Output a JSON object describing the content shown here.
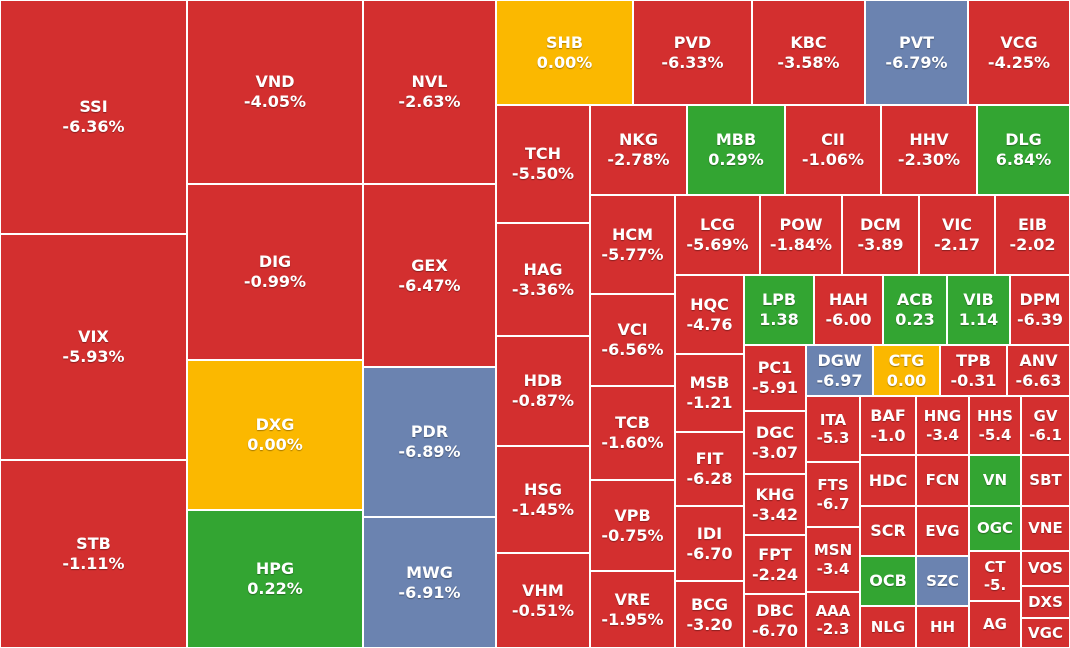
{
  "colors": {
    "down": "#d32f2f",
    "up": "#33a532",
    "unchanged": "#fbb800",
    "floor": "#6b83b0",
    "ceiling": "#6b83b0"
  },
  "chart_data": {
    "type": "treemap",
    "tiles": [
      {
        "symbol": "SSI",
        "change": "-6.36%",
        "status": "down"
      },
      {
        "symbol": "VIX",
        "change": "-5.93%",
        "status": "down"
      },
      {
        "symbol": "STB",
        "change": "-1.11%",
        "status": "down"
      },
      {
        "symbol": "VND",
        "change": "-4.05%",
        "status": "down"
      },
      {
        "symbol": "DIG",
        "change": "-0.99%",
        "status": "down"
      },
      {
        "symbol": "DXG",
        "change": "0.00%",
        "status": "unchanged"
      },
      {
        "symbol": "HPG",
        "change": "0.22%",
        "status": "up"
      },
      {
        "symbol": "NVL",
        "change": "-2.63%",
        "status": "down"
      },
      {
        "symbol": "GEX",
        "change": "-6.47%",
        "status": "down"
      },
      {
        "symbol": "PDR",
        "change": "-6.89%",
        "status": "floor"
      },
      {
        "symbol": "MWG",
        "change": "-6.91%",
        "status": "floor"
      },
      {
        "symbol": "SHB",
        "change": "0.00%",
        "status": "unchanged"
      },
      {
        "symbol": "PVD",
        "change": "-6.33%",
        "status": "down"
      },
      {
        "symbol": "KBC",
        "change": "-3.58%",
        "status": "down"
      },
      {
        "symbol": "PVT",
        "change": "-6.79%",
        "status": "floor"
      },
      {
        "symbol": "VCG",
        "change": "-4.25%",
        "status": "down"
      },
      {
        "symbol": "TCH",
        "change": "-5.50%",
        "status": "down"
      },
      {
        "symbol": "HAG",
        "change": "-3.36%",
        "status": "down"
      },
      {
        "symbol": "HDB",
        "change": "-0.87%",
        "status": "down"
      },
      {
        "symbol": "HSG",
        "change": "-1.45%",
        "status": "down"
      },
      {
        "symbol": "VHM",
        "change": "-0.51%",
        "status": "down"
      },
      {
        "symbol": "NKG",
        "change": "-2.78%",
        "status": "down"
      },
      {
        "symbol": "MBB",
        "change": "0.29%",
        "status": "up"
      },
      {
        "symbol": "CII",
        "change": "-1.06%",
        "status": "down"
      },
      {
        "symbol": "HHV",
        "change": "-2.30%",
        "status": "down"
      },
      {
        "symbol": "DLG",
        "change": "6.84%",
        "status": "up"
      },
      {
        "symbol": "HCM",
        "change": "-5.77%",
        "status": "down"
      },
      {
        "symbol": "VCI",
        "change": "-6.56%",
        "status": "down"
      },
      {
        "symbol": "TCB",
        "change": "-1.60%",
        "status": "down"
      },
      {
        "symbol": "VPB",
        "change": "-0.75%",
        "status": "down"
      },
      {
        "symbol": "VRE",
        "change": "-1.95%",
        "status": "down"
      },
      {
        "symbol": "LCG",
        "change": "-5.69%",
        "status": "down"
      },
      {
        "symbol": "POW",
        "change": "-1.84%",
        "status": "down"
      },
      {
        "symbol": "DCM",
        "change": "-3.89",
        "status": "down"
      },
      {
        "symbol": "VIC",
        "change": "-2.17",
        "status": "down"
      },
      {
        "symbol": "EIB",
        "change": "-2.02",
        "status": "down"
      },
      {
        "symbol": "HQC",
        "change": "-4.76",
        "status": "down"
      },
      {
        "symbol": "MSB",
        "change": "-1.21",
        "status": "down"
      },
      {
        "symbol": "FIT",
        "change": "-6.28",
        "status": "down"
      },
      {
        "symbol": "IDI",
        "change": "-6.70",
        "status": "down"
      },
      {
        "symbol": "BCG",
        "change": "-3.20",
        "status": "down"
      },
      {
        "symbol": "LPB",
        "change": "1.38",
        "status": "up"
      },
      {
        "symbol": "HAH",
        "change": "-6.00",
        "status": "down"
      },
      {
        "symbol": "ACB",
        "change": "0.23",
        "status": "up"
      },
      {
        "symbol": "VIB",
        "change": "1.14",
        "status": "up"
      },
      {
        "symbol": "DPM",
        "change": "-6.39",
        "status": "down"
      },
      {
        "symbol": "PC1",
        "change": "-5.91",
        "status": "down"
      },
      {
        "symbol": "DGW",
        "change": "-6.97",
        "status": "floor"
      },
      {
        "symbol": "CTG",
        "change": "0.00",
        "status": "unchanged"
      },
      {
        "symbol": "TPB",
        "change": "-0.31",
        "status": "down"
      },
      {
        "symbol": "ANV",
        "change": "-6.63",
        "status": "down"
      },
      {
        "symbol": "DGC",
        "change": "-3.07",
        "status": "down"
      },
      {
        "symbol": "KHG",
        "change": "-3.42",
        "status": "down"
      },
      {
        "symbol": "FPT",
        "change": "-2.24",
        "status": "down"
      },
      {
        "symbol": "DBC",
        "change": "-6.70",
        "status": "down"
      },
      {
        "symbol": "ITA",
        "change": "-5.3",
        "status": "down"
      },
      {
        "symbol": "FTS",
        "change": "-6.7",
        "status": "down"
      },
      {
        "symbol": "MSN",
        "change": "-3.4",
        "status": "down"
      },
      {
        "symbol": "AAA",
        "change": "-2.3",
        "status": "down"
      },
      {
        "symbol": "BAF",
        "change": "-1.0",
        "status": "down"
      },
      {
        "symbol": "HNG",
        "change": "-3.4",
        "status": "down"
      },
      {
        "symbol": "HHS",
        "change": "-5.4",
        "status": "down"
      },
      {
        "symbol": "GV",
        "change": "-6.1",
        "status": "down"
      },
      {
        "symbol": "HDC",
        "change": "",
        "status": "down"
      },
      {
        "symbol": "FCN",
        "change": "",
        "status": "down"
      },
      {
        "symbol": "VN",
        "change": "",
        "status": "up"
      },
      {
        "symbol": "SBT",
        "change": "",
        "status": "down"
      },
      {
        "symbol": "SCR",
        "change": "",
        "status": "down"
      },
      {
        "symbol": "EVG",
        "change": "",
        "status": "down"
      },
      {
        "symbol": "OGC",
        "change": "",
        "status": "up"
      },
      {
        "symbol": "VNE",
        "change": "",
        "status": "down"
      },
      {
        "symbol": "OCB",
        "change": "",
        "status": "up"
      },
      {
        "symbol": "SZC",
        "change": "",
        "status": "floor"
      },
      {
        "symbol": "CT",
        "change": "-5.",
        "status": "down"
      },
      {
        "symbol": "VOS",
        "change": "",
        "status": "down"
      },
      {
        "symbol": "DXS",
        "change": "",
        "status": "down"
      },
      {
        "symbol": "NLG",
        "change": "",
        "status": "down"
      },
      {
        "symbol": "HH",
        "change": "",
        "status": "down"
      },
      {
        "symbol": "AG",
        "change": "",
        "status": "down"
      },
      {
        "symbol": "VGC",
        "change": "",
        "status": "down"
      }
    ]
  }
}
